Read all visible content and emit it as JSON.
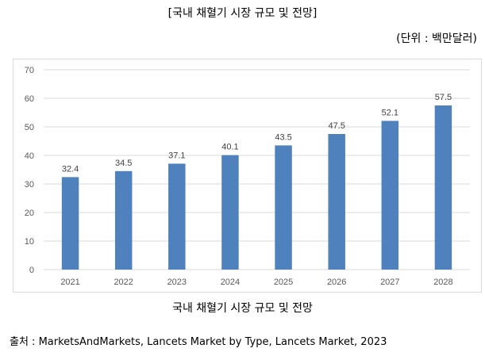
{
  "header": {
    "title": "[국내 채혈기 시장 규모 및 전망]",
    "unit": "(단위 : 백만달러)"
  },
  "caption": "국내 채혈기 시장 규모 및 전망",
  "source": "출처 : MarketsAndMarkets, Lancets Market by Type, Lancets Market, 2023",
  "chart_data": {
    "type": "bar",
    "categories": [
      "2021",
      "2022",
      "2023",
      "2024",
      "2025",
      "2026",
      "2027",
      "2028"
    ],
    "values": [
      32.4,
      34.5,
      37.1,
      40.1,
      43.5,
      47.5,
      52.1,
      57.5
    ],
    "data_labels": [
      "32.4",
      "34.5",
      "37.1",
      "40.1",
      "43.5",
      "47.5",
      "52.1",
      "57.5"
    ],
    "title": "",
    "xlabel": "",
    "ylabel": "",
    "ylim": [
      0,
      70
    ],
    "yticks": [
      "0",
      "10",
      "20",
      "30",
      "40",
      "50",
      "60",
      "70"
    ],
    "grid": true,
    "legend": "none",
    "bar_color": "#4f81bd",
    "grid_color": "#d9d9d9"
  }
}
